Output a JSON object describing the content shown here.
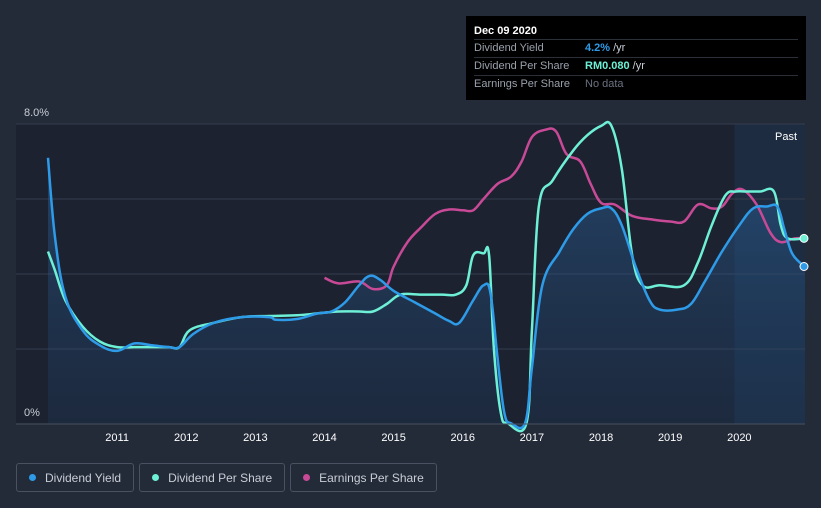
{
  "tooltip": {
    "date": "Dec 09 2020",
    "rows": [
      {
        "label": "Dividend Yield",
        "value": "4.2%",
        "unit": "/yr",
        "color": "#2e9be8"
      },
      {
        "label": "Dividend Per Share",
        "value": "RM0.080",
        "unit": "/yr",
        "color": "#6ef0d6"
      },
      {
        "label": "Earnings Per Share",
        "value": "No data",
        "unit": "",
        "color": "#6b7280"
      }
    ]
  },
  "legend": [
    {
      "label": "Dividend Yield",
      "color": "#2e9be8"
    },
    {
      "label": "Dividend Per Share",
      "color": "#6ef0d6"
    },
    {
      "label": "Earnings Per Share",
      "color": "#c84a97"
    }
  ],
  "chart_data": {
    "type": "line",
    "title": "",
    "ylabel_top": "8.0%",
    "ylabel_bottom": "0%",
    "ylim": [
      0,
      8
    ],
    "xlim": [
      2010.0,
      2020.95
    ],
    "x_ticks": [
      "2011",
      "2012",
      "2013",
      "2014",
      "2015",
      "2016",
      "2017",
      "2018",
      "2019",
      "2020"
    ],
    "past_label": "Past",
    "past_region_start": 2019.93,
    "series": [
      {
        "name": "Dividend Yield",
        "color": "#2e9be8",
        "area": true,
        "points": [
          [
            2010.0,
            7.1
          ],
          [
            2010.1,
            5.0
          ],
          [
            2010.25,
            3.4
          ],
          [
            2010.5,
            2.5
          ],
          [
            2010.75,
            2.1
          ],
          [
            2011.0,
            1.95
          ],
          [
            2011.25,
            2.15
          ],
          [
            2011.5,
            2.1
          ],
          [
            2011.75,
            2.05
          ],
          [
            2011.9,
            2.05
          ],
          [
            2012.1,
            2.4
          ],
          [
            2012.4,
            2.7
          ],
          [
            2012.8,
            2.85
          ],
          [
            2013.2,
            2.85
          ],
          [
            2013.3,
            2.78
          ],
          [
            2013.6,
            2.8
          ],
          [
            2013.9,
            2.95
          ],
          [
            2014.1,
            3.0
          ],
          [
            2014.3,
            3.25
          ],
          [
            2014.5,
            3.7
          ],
          [
            2014.65,
            3.95
          ],
          [
            2014.8,
            3.85
          ],
          [
            2015.0,
            3.55
          ],
          [
            2015.3,
            3.25
          ],
          [
            2015.6,
            2.95
          ],
          [
            2015.8,
            2.75
          ],
          [
            2015.95,
            2.7
          ],
          [
            2016.15,
            3.3
          ],
          [
            2016.3,
            3.7
          ],
          [
            2016.4,
            3.5
          ],
          [
            2016.5,
            1.8
          ],
          [
            2016.6,
            0.3
          ],
          [
            2016.7,
            0.02
          ],
          [
            2016.9,
            0.02
          ],
          [
            2017.0,
            1.5
          ],
          [
            2017.15,
            3.7
          ],
          [
            2017.4,
            4.6
          ],
          [
            2017.6,
            5.2
          ],
          [
            2017.8,
            5.6
          ],
          [
            2018.0,
            5.75
          ],
          [
            2018.15,
            5.75
          ],
          [
            2018.3,
            5.3
          ],
          [
            2018.5,
            4.2
          ],
          [
            2018.7,
            3.3
          ],
          [
            2018.85,
            3.05
          ],
          [
            2019.1,
            3.05
          ],
          [
            2019.3,
            3.2
          ],
          [
            2019.5,
            3.8
          ],
          [
            2019.75,
            4.6
          ],
          [
            2020.0,
            5.3
          ],
          [
            2020.2,
            5.75
          ],
          [
            2020.4,
            5.8
          ],
          [
            2020.55,
            5.8
          ],
          [
            2020.65,
            5.2
          ],
          [
            2020.75,
            4.6
          ],
          [
            2020.85,
            4.35
          ],
          [
            2020.95,
            4.2
          ]
        ]
      },
      {
        "name": "Dividend Per Share",
        "color": "#6ef0d6",
        "area": false,
        "points": [
          [
            2010.0,
            4.6
          ],
          [
            2010.1,
            4.1
          ],
          [
            2010.25,
            3.3
          ],
          [
            2010.5,
            2.6
          ],
          [
            2010.75,
            2.2
          ],
          [
            2011.0,
            2.05
          ],
          [
            2011.25,
            2.05
          ],
          [
            2011.5,
            2.05
          ],
          [
            2011.75,
            2.05
          ],
          [
            2011.9,
            2.05
          ],
          [
            2012.05,
            2.5
          ],
          [
            2012.4,
            2.7
          ],
          [
            2012.8,
            2.85
          ],
          [
            2013.2,
            2.88
          ],
          [
            2013.6,
            2.9
          ],
          [
            2013.9,
            2.95
          ],
          [
            2014.2,
            3.0
          ],
          [
            2014.5,
            3.0
          ],
          [
            2014.7,
            3.0
          ],
          [
            2014.9,
            3.2
          ],
          [
            2015.1,
            3.45
          ],
          [
            2015.4,
            3.45
          ],
          [
            2015.7,
            3.45
          ],
          [
            2015.9,
            3.45
          ],
          [
            2016.05,
            3.7
          ],
          [
            2016.15,
            4.5
          ],
          [
            2016.3,
            4.55
          ],
          [
            2016.38,
            4.5
          ],
          [
            2016.45,
            2.0
          ],
          [
            2016.55,
            0.3
          ],
          [
            2016.65,
            0.02
          ],
          [
            2016.92,
            0.02
          ],
          [
            2017.0,
            2.5
          ],
          [
            2017.1,
            5.8
          ],
          [
            2017.3,
            6.5
          ],
          [
            2017.6,
            7.3
          ],
          [
            2017.8,
            7.7
          ],
          [
            2018.0,
            7.95
          ],
          [
            2018.15,
            7.95
          ],
          [
            2018.3,
            6.8
          ],
          [
            2018.45,
            4.5
          ],
          [
            2018.6,
            3.7
          ],
          [
            2018.85,
            3.7
          ],
          [
            2019.2,
            3.7
          ],
          [
            2019.4,
            4.3
          ],
          [
            2019.6,
            5.3
          ],
          [
            2019.8,
            6.1
          ],
          [
            2019.95,
            6.2
          ],
          [
            2020.1,
            6.2
          ],
          [
            2020.3,
            6.2
          ],
          [
            2020.5,
            6.2
          ],
          [
            2020.6,
            5.3
          ],
          [
            2020.7,
            4.95
          ],
          [
            2020.95,
            4.95
          ]
        ]
      },
      {
        "name": "Earnings Per Share",
        "color": "#c84a97",
        "area": false,
        "points": [
          [
            2014.0,
            3.9
          ],
          [
            2014.2,
            3.75
          ],
          [
            2014.5,
            3.8
          ],
          [
            2014.7,
            3.6
          ],
          [
            2014.9,
            3.7
          ],
          [
            2015.0,
            4.2
          ],
          [
            2015.2,
            4.85
          ],
          [
            2015.4,
            5.25
          ],
          [
            2015.6,
            5.6
          ],
          [
            2015.8,
            5.72
          ],
          [
            2016.0,
            5.7
          ],
          [
            2016.15,
            5.7
          ],
          [
            2016.3,
            6.0
          ],
          [
            2016.5,
            6.4
          ],
          [
            2016.7,
            6.6
          ],
          [
            2016.85,
            7.0
          ],
          [
            2017.0,
            7.65
          ],
          [
            2017.2,
            7.85
          ],
          [
            2017.35,
            7.8
          ],
          [
            2017.5,
            7.2
          ],
          [
            2017.7,
            7.0
          ],
          [
            2017.85,
            6.4
          ],
          [
            2018.0,
            5.9
          ],
          [
            2018.2,
            5.85
          ],
          [
            2018.45,
            5.55
          ],
          [
            2018.75,
            5.45
          ],
          [
            2019.0,
            5.4
          ],
          [
            2019.2,
            5.4
          ],
          [
            2019.4,
            5.85
          ],
          [
            2019.6,
            5.75
          ],
          [
            2019.75,
            5.8
          ],
          [
            2019.9,
            6.15
          ],
          [
            2020.05,
            6.25
          ],
          [
            2020.25,
            5.85
          ],
          [
            2020.45,
            5.1
          ],
          [
            2020.6,
            4.85
          ],
          [
            2020.8,
            4.95
          ],
          [
            2020.95,
            4.95
          ]
        ]
      }
    ]
  }
}
